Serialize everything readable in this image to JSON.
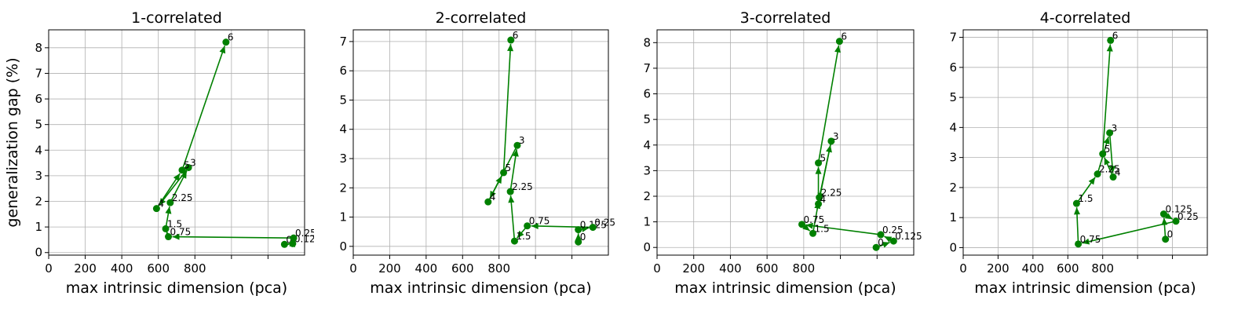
{
  "figure": {
    "ylabel": "generalization gap (%)"
  },
  "chart_data": [
    {
      "type": "line",
      "title": "1-correlated",
      "xlabel": "max intrinsic dimension (pca)",
      "ylabel": "generalization gap (%)",
      "xlim": [
        0,
        1400
      ],
      "ylim": [
        -0.1,
        8.7
      ],
      "xticks": [
        0,
        200,
        400,
        600,
        800,
        1000,
        1200
      ],
      "xtick_labels": [
        "0",
        "200",
        "400",
        "600",
        "800",
        "",
        ""
      ],
      "yticks": [
        0,
        1,
        2,
        3,
        4,
        5,
        6,
        7,
        8
      ],
      "grid": true,
      "color": "#008000",
      "points": [
        {
          "label": "0",
          "x": 1290,
          "y": 0.32
        },
        {
          "label": "0.125",
          "x": 1335,
          "y": 0.35
        },
        {
          "label": "0.25",
          "x": 1340,
          "y": 0.57
        },
        {
          "label": "0.75",
          "x": 655,
          "y": 0.62
        },
        {
          "label": "1.5",
          "x": 640,
          "y": 0.93
        },
        {
          "label": "2.25",
          "x": 665,
          "y": 1.95
        },
        {
          "label": "3",
          "x": 765,
          "y": 3.32
        },
        {
          "label": "4",
          "x": 590,
          "y": 1.72
        },
        {
          "label": "5",
          "x": 730,
          "y": 3.22
        },
        {
          "label": "6",
          "x": 970,
          "y": 8.22
        }
      ]
    },
    {
      "type": "line",
      "title": "2-correlated",
      "xlabel": "max intrinsic dimension (pca)",
      "ylabel": "",
      "xlim": [
        0,
        1400
      ],
      "ylim": [
        -0.3,
        7.4
      ],
      "xticks": [
        0,
        200,
        400,
        600,
        800,
        1000,
        1200
      ],
      "xtick_labels": [
        "0",
        "200",
        "400",
        "600",
        "800",
        "",
        ""
      ],
      "yticks": [
        0,
        1,
        2,
        3,
        4,
        5,
        6,
        7
      ],
      "grid": true,
      "color": "#008000",
      "points": [
        {
          "label": "0",
          "x": 1235,
          "y": 0.15
        },
        {
          "label": "0.125",
          "x": 1235,
          "y": 0.57
        },
        {
          "label": "0.25",
          "x": 1315,
          "y": 0.65
        },
        {
          "label": "0.75",
          "x": 955,
          "y": 0.7
        },
        {
          "label": "1.5",
          "x": 885,
          "y": 0.18
        },
        {
          "label": "2.25",
          "x": 862,
          "y": 1.87
        },
        {
          "label": "3",
          "x": 900,
          "y": 3.45
        },
        {
          "label": "4",
          "x": 740,
          "y": 1.52
        },
        {
          "label": "5",
          "x": 825,
          "y": 2.52
        },
        {
          "label": "6",
          "x": 865,
          "y": 7.05
        }
      ]
    },
    {
      "type": "line",
      "title": "3-correlated",
      "xlabel": "max intrinsic dimension (pca)",
      "ylabel": "",
      "xlim": [
        0,
        1400
      ],
      "ylim": [
        -0.3,
        8.5
      ],
      "xticks": [
        0,
        200,
        400,
        600,
        800,
        1000,
        1200
      ],
      "xtick_labels": [
        "0",
        "200",
        "400",
        "600",
        "800",
        "",
        ""
      ],
      "yticks": [
        0,
        1,
        2,
        3,
        4,
        5,
        6,
        7,
        8
      ],
      "grid": true,
      "color": "#008000",
      "points": [
        {
          "label": "0",
          "x": 1195,
          "y": 0.0
        },
        {
          "label": "0.125",
          "x": 1290,
          "y": 0.25
        },
        {
          "label": "0.25",
          "x": 1220,
          "y": 0.5
        },
        {
          "label": "0.75",
          "x": 790,
          "y": 0.9
        },
        {
          "label": "1.5",
          "x": 850,
          "y": 0.55
        },
        {
          "label": "2.25",
          "x": 885,
          "y": 1.95
        },
        {
          "label": "3",
          "x": 950,
          "y": 4.15
        },
        {
          "label": "4",
          "x": 880,
          "y": 1.7
        },
        {
          "label": "5",
          "x": 880,
          "y": 3.3
        },
        {
          "label": "6",
          "x": 995,
          "y": 8.05
        }
      ]
    },
    {
      "type": "line",
      "title": "4-correlated",
      "xlabel": "max intrinsic dimension (pca)",
      "ylabel": "",
      "xlim": [
        0,
        1400
      ],
      "ylim": [
        -0.25,
        7.25
      ],
      "xticks": [
        0,
        200,
        400,
        600,
        800,
        1000,
        1200
      ],
      "xtick_labels": [
        "0",
        "200",
        "400",
        "600",
        "800",
        "",
        ""
      ],
      "yticks": [
        0,
        1,
        2,
        3,
        4,
        5,
        6,
        7
      ],
      "grid": true,
      "color": "#008000",
      "points": [
        {
          "label": "0",
          "x": 1160,
          "y": 0.28
        },
        {
          "label": "0.125",
          "x": 1150,
          "y": 1.12
        },
        {
          "label": "0.25",
          "x": 1220,
          "y": 0.88
        },
        {
          "label": "0.75",
          "x": 660,
          "y": 0.12
        },
        {
          "label": "1.5",
          "x": 650,
          "y": 1.47
        },
        {
          "label": "2.25",
          "x": 770,
          "y": 2.45
        },
        {
          "label": "3",
          "x": 840,
          "y": 3.82
        },
        {
          "label": "4",
          "x": 860,
          "y": 2.35
        },
        {
          "label": "5",
          "x": 800,
          "y": 3.12
        },
        {
          "label": "6",
          "x": 845,
          "y": 6.9
        }
      ]
    }
  ]
}
